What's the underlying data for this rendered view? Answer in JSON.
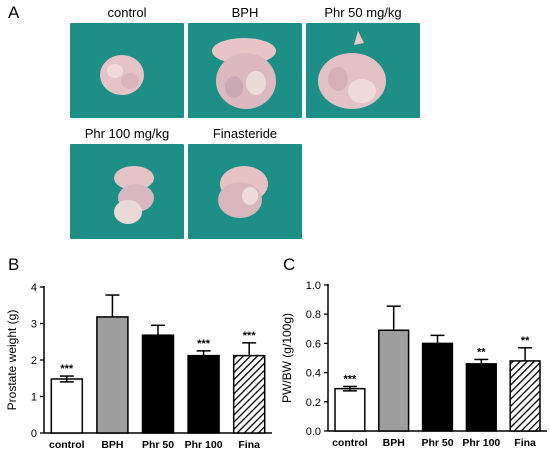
{
  "panels": {
    "a_letter": "A",
    "b_letter": "B",
    "c_letter": "C"
  },
  "photos": [
    {
      "label": "control"
    },
    {
      "label": "BPH"
    },
    {
      "label": "Phr 50 mg/kg"
    },
    {
      "label": "Phr 100 mg/kg"
    },
    {
      "label": "Finasteride"
    }
  ],
  "colors": {
    "photo_bg": "#1e8f86",
    "tissue": "#e6c7c9",
    "bar_control": "#ffffff",
    "bar_bph": "#9e9e9e",
    "bar_phr": "#000000"
  },
  "chart_data": [
    {
      "type": "bar",
      "panel": "B",
      "ylabel": "Prostate weight (g)",
      "ylim": [
        0,
        4
      ],
      "yticks": [
        "0",
        "1",
        "2",
        "3",
        "4"
      ],
      "categories": [
        "control",
        "BPH",
        "Phr 50",
        "Phr 100",
        "Fina"
      ],
      "values": [
        1.48,
        3.18,
        2.68,
        2.12,
        2.12
      ],
      "errors": [
        0.08,
        0.6,
        0.27,
        0.13,
        0.35
      ],
      "significance": [
        "***",
        "",
        "",
        "***",
        "***"
      ],
      "fills": [
        "white",
        "gray",
        "black",
        "black",
        "hatched"
      ]
    },
    {
      "type": "bar",
      "panel": "C",
      "ylabel": "PW/BW (g/100g)",
      "ylim": [
        0,
        1.0
      ],
      "yticks": [
        "0.0",
        "0.2",
        "0.4",
        "0.6",
        "0.8",
        "1.0"
      ],
      "categories": [
        "control",
        "BPH",
        "Phr 50",
        "Phr 100",
        "Fina"
      ],
      "values": [
        0.29,
        0.69,
        0.6,
        0.46,
        0.48
      ],
      "errors": [
        0.015,
        0.165,
        0.055,
        0.03,
        0.09
      ],
      "significance": [
        "***",
        "",
        "",
        "**",
        "**"
      ],
      "fills": [
        "white",
        "gray",
        "black",
        "black",
        "hatched"
      ]
    }
  ]
}
